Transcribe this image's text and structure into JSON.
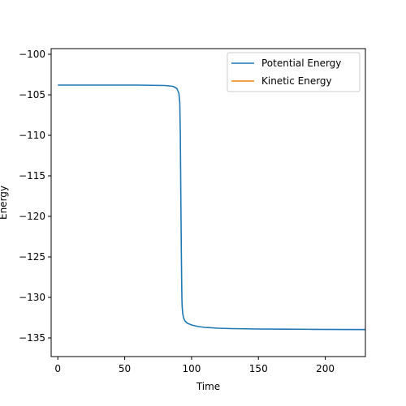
{
  "chart_data": {
    "type": "line",
    "title": "",
    "xlabel": "Time",
    "ylabel": "Energy",
    "xlim": [
      -5,
      230
    ],
    "ylim": [
      -137.3,
      -99.3
    ],
    "xticks": [
      0,
      50,
      100,
      150,
      200
    ],
    "yticks": [
      -100,
      -105,
      -110,
      -115,
      -120,
      -125,
      -130,
      -135
    ],
    "xtick_labels": [
      "0",
      "50",
      "100",
      "150",
      "200"
    ],
    "ytick_labels": [
      "−100",
      "−105",
      "−110",
      "−115",
      "−120",
      "−125",
      "−130",
      "−135"
    ],
    "grid": false,
    "legend_position": "top-right",
    "series": [
      {
        "name": "Potential Energy",
        "color": "#1f77b4",
        "x": [
          0,
          20,
          40,
          60,
          80,
          86,
          89,
          90.5,
          91.2,
          91.6,
          91.9,
          92.1,
          92.4,
          92.6,
          92.8,
          93.0,
          93.4,
          94,
          95,
          97,
          100,
          105,
          110,
          120,
          130,
          150,
          170,
          190,
          210,
          230
        ],
        "y": [
          -103.8,
          -103.8,
          -103.8,
          -103.8,
          -103.85,
          -103.95,
          -104.2,
          -104.8,
          -106,
          -110,
          -116,
          -120,
          -125,
          -128,
          -130.3,
          -131.2,
          -132.0,
          -132.5,
          -132.9,
          -133.2,
          -133.4,
          -133.6,
          -133.7,
          -133.8,
          -133.85,
          -133.9,
          -133.92,
          -133.94,
          -133.96,
          -133.97
        ]
      },
      {
        "name": "Kinetic Energy",
        "color": "#ff7f0e",
        "x": [],
        "y": []
      }
    ]
  }
}
